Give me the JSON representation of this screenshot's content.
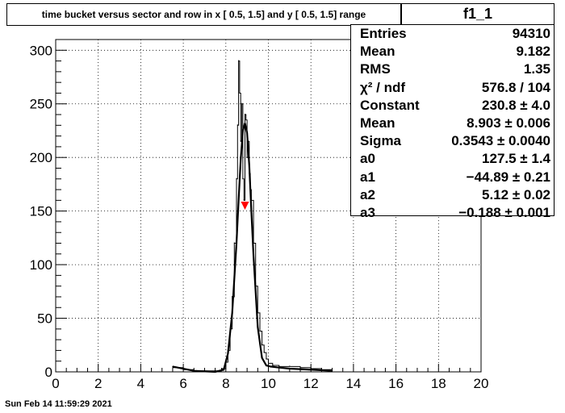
{
  "title": "time bucket versus sector and row in x [  0.5,  1.5] and y [  0.5,  1.5] range",
  "stats": {
    "name": "f1_1",
    "rows": [
      {
        "label": "Entries",
        "value": "94310"
      },
      {
        "label": "Mean",
        "value": "9.182"
      },
      {
        "label": "RMS",
        "value": "1.35"
      },
      {
        "label": "χ² / ndf",
        "value": "576.8 / 104"
      },
      {
        "label": "Constant",
        "value": "230.8 ± 4.0"
      },
      {
        "label": "Mean",
        "value": "8.903 ± 0.006"
      },
      {
        "label": "Sigma",
        "value": "0.3543 ± 0.0040"
      },
      {
        "label": "a0",
        "value": "127.5 ± 1.4"
      },
      {
        "label": "a1",
        "value": "−44.89 ± 0.21"
      },
      {
        "label": "a2",
        "value": "5.12 ± 0.02"
      },
      {
        "label": "a3",
        "value": "−0.188 ± 0.001"
      }
    ]
  },
  "footer": "Sun Feb 14 11:59:29 2021",
  "colors": {
    "marker": "#ff0000",
    "line": "#000000"
  },
  "chart_data": {
    "type": "line",
    "title": "time bucket versus sector and row in x [  0.5,  1.5] and y [  0.5,  1.5] range",
    "xlabel": "",
    "ylabel": "",
    "xlim": [
      0,
      20
    ],
    "ylim": [
      0,
      310
    ],
    "grid": true,
    "x_ticks": [
      0,
      2,
      4,
      6,
      8,
      10,
      12,
      14,
      16,
      18,
      20
    ],
    "y_ticks": [
      0,
      50,
      100,
      150,
      200,
      250,
      300
    ],
    "series": [
      {
        "kind": "histogram",
        "x": [
          5.5,
          6.0,
          6.5,
          7.0,
          7.5,
          7.8,
          8.0,
          8.1,
          8.2,
          8.3,
          8.4,
          8.5,
          8.55,
          8.6,
          8.65,
          8.7,
          8.75,
          8.8,
          8.85,
          8.9,
          8.95,
          9.0,
          9.05,
          9.1,
          9.15,
          9.2,
          9.3,
          9.4,
          9.5,
          9.6,
          9.7,
          9.8,
          9.9,
          10.0,
          10.2,
          10.5,
          11.0,
          11.5,
          12.0,
          12.5
        ],
        "values": [
          4,
          2,
          1,
          1,
          1,
          3,
          9,
          20,
          40,
          70,
          120,
          180,
          230,
          290,
          260,
          215,
          250,
          180,
          160,
          240,
          235,
          200,
          215,
          185,
          170,
          160,
          120,
          80,
          55,
          38,
          25,
          18,
          12,
          8,
          6,
          5,
          5,
          4,
          3,
          2
        ]
      },
      {
        "kind": "fit",
        "x": [
          5.5,
          6.5,
          7.5,
          7.9,
          8.1,
          8.3,
          8.5,
          8.6,
          8.7,
          8.8,
          8.9,
          9.0,
          9.1,
          9.2,
          9.3,
          9.5,
          9.7,
          9.9,
          10.1,
          10.5,
          11.0,
          12.0,
          13.0
        ],
        "values": [
          5,
          1,
          0,
          2,
          17,
          55,
          120,
          160,
          198,
          225,
          232,
          223,
          193,
          150,
          108,
          42,
          13,
          6,
          5,
          4,
          3,
          2,
          1
        ]
      }
    ],
    "marker": {
      "x": 8.9,
      "y": 155
    }
  }
}
